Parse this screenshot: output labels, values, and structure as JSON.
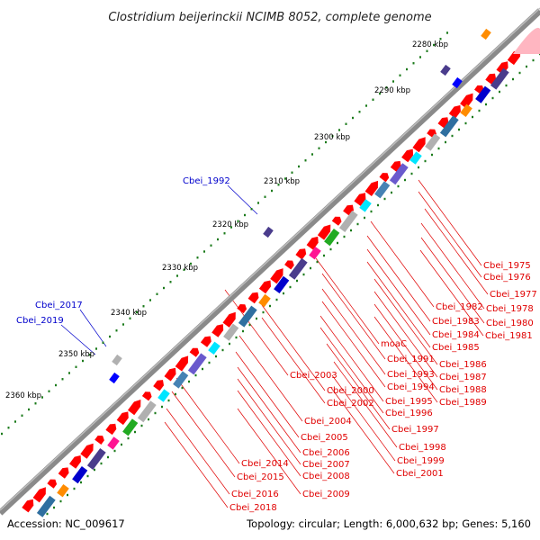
{
  "title": "Clostridium beijerinckii NCIMB 8052, complete genome",
  "footer": {
    "accession": "Accession: NC_009617",
    "summary": "Topology: circular; Length: 6,000,632 bp; Genes: 5,160"
  },
  "colors": {
    "backbone": "#808080",
    "forward_gene": "#ff0000",
    "label_red": "#e00000",
    "label_blue": "#0000cc",
    "tick_dot": "#1a7a1a"
  },
  "kbp_ticks": [
    {
      "text": "2280 kbp"
    },
    {
      "text": "2290 kbp"
    },
    {
      "text": "2300 kbp"
    },
    {
      "text": "2310 kbp"
    },
    {
      "text": "2320 kbp"
    },
    {
      "text": "2330 kbp"
    },
    {
      "text": "2340 kbp"
    },
    {
      "text": "2350 kbp"
    },
    {
      "text": "2360 kbp"
    }
  ],
  "blue_labels": [
    "Cbei_1992",
    "Cbei_2017",
    "Cbei_2019"
  ],
  "red_labels": [
    "Cbei_1975",
    "Cbei_1976",
    "Cbei_1977",
    "Cbei_1978",
    "Cbei_1980",
    "Cbei_1981",
    "Cbei_1982",
    "Cbei_1983",
    "Cbei_1984",
    "Cbei_1985",
    "moaC",
    "Cbei_1991",
    "Cbei_1986",
    "Cbei_1987",
    "Cbei_1993",
    "Cbei_1994",
    "Cbei_1988",
    "Cbei_1989",
    "Cbei_1995",
    "Cbei_1996",
    "Cbei_2003",
    "Cbei_2000",
    "Cbei_2002",
    "Cbei_1997",
    "Cbei_2004",
    "Cbei_1998",
    "Cbei_2005",
    "Cbei_2006",
    "Cbei_1999",
    "Cbei_2014",
    "Cbei_2007",
    "Cbei_2001",
    "Cbei_2015",
    "Cbei_2008",
    "Cbei_2016",
    "Cbei_2009",
    "Cbei_2018"
  ]
}
